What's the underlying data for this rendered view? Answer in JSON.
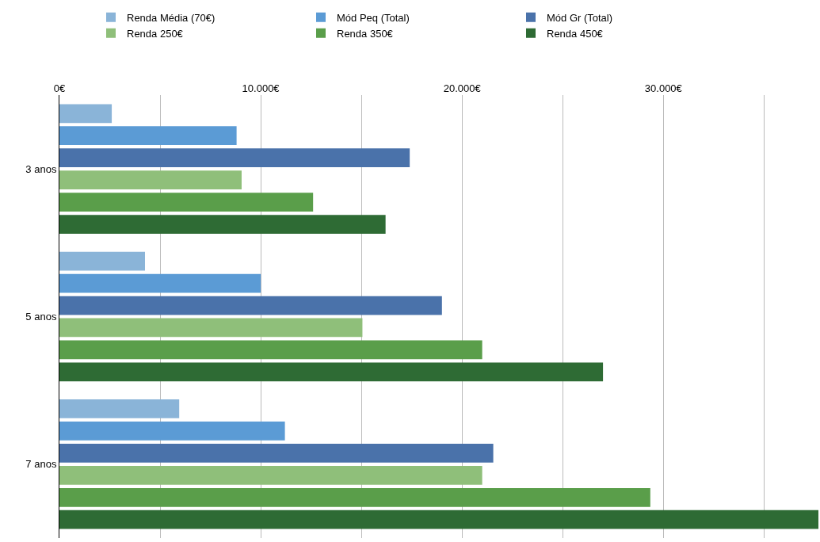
{
  "chart_data": {
    "type": "bar",
    "orientation": "horizontal",
    "categories": [
      "3 anos",
      "5 anos",
      "7 anos"
    ],
    "series": [
      {
        "name": "Renda Média (70€)",
        "color": "#8ab4d8",
        "values": [
          2600,
          4250,
          5950
        ]
      },
      {
        "name": "Mód Peq (Total)",
        "color": "#5b9bd5",
        "values": [
          8800,
          10000,
          11200
        ]
      },
      {
        "name": "Mód Gr (Total)",
        "color": "#4a72aa",
        "values": [
          17400,
          19000,
          21550
        ]
      },
      {
        "name": "Renda 250€",
        "color": "#8fbf7a",
        "values": [
          9050,
          15050,
          21000
        ]
      },
      {
        "name": "Renda 350€",
        "color": "#5a9e4a",
        "values": [
          12600,
          21000,
          29350
        ]
      },
      {
        "name": "Renda 450€",
        "color": "#2e6b34",
        "values": [
          16200,
          27000,
          37700
        ]
      }
    ],
    "xlim": [
      0,
      37700
    ],
    "xticks": [
      {
        "value": 0,
        "label": "0€"
      },
      {
        "value": 5000,
        "label": null
      },
      {
        "value": 10000,
        "label": "10.000€"
      },
      {
        "value": 15000,
        "label": null
      },
      {
        "value": 20000,
        "label": "20.000€"
      },
      {
        "value": 25000,
        "label": null
      },
      {
        "value": 30000,
        "label": "30.000€"
      },
      {
        "value": 35000,
        "label": null
      }
    ],
    "grid": "x",
    "legend": "top"
  }
}
